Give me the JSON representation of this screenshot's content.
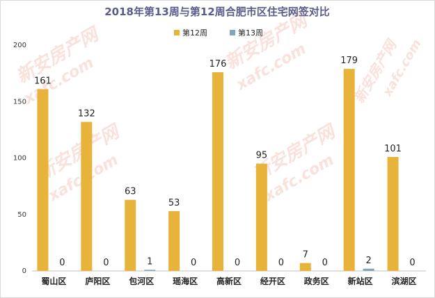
{
  "chart_data": {
    "type": "bar",
    "title": "2018年第13周与第12周合肥市区住宅网签对比",
    "categories": [
      "蜀山区",
      "庐阳区",
      "包河区",
      "瑶海区",
      "高新区",
      "经开区",
      "政务区",
      "新站区",
      "滨湖区"
    ],
    "series": [
      {
        "name": "第12周",
        "color": "#E8B33A",
        "values": [
          161,
          132,
          63,
          53,
          176,
          95,
          7,
          179,
          101
        ]
      },
      {
        "name": "第13周",
        "color": "#7FA7B8",
        "values": [
          0,
          0,
          1,
          0,
          0,
          0,
          0,
          2,
          0
        ]
      }
    ],
    "yticks": [
      0,
      50,
      100,
      150,
      200
    ],
    "ylim": [
      0,
      200
    ],
    "legend_position": "top",
    "grid": false,
    "xlabel": "",
    "ylabel": ""
  },
  "watermark": {
    "text_cn": "新安房产网",
    "text_en": "xafc.com"
  }
}
